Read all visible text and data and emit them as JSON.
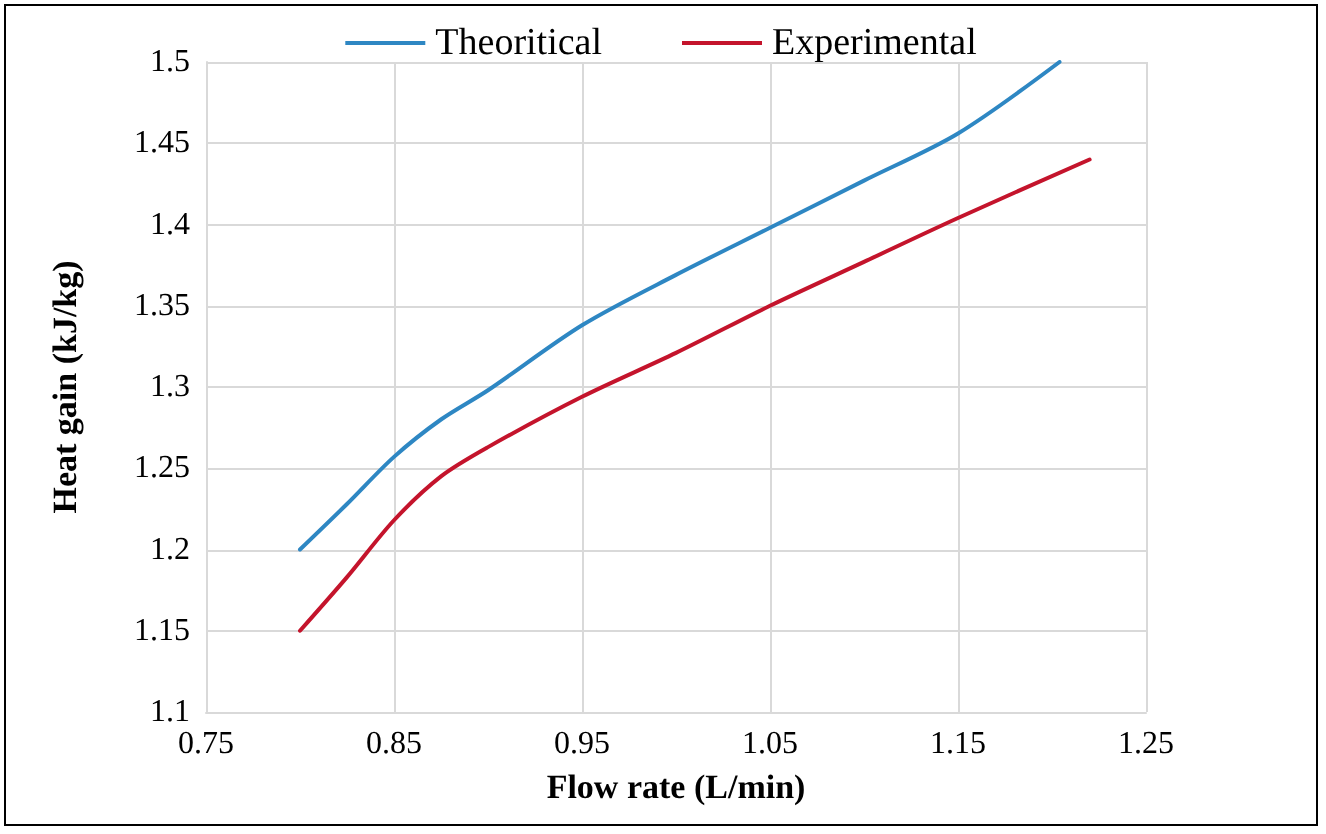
{
  "chart_data": {
    "type": "line",
    "xlabel": "Flow rate (L/min)",
    "ylabel": "Heat gain (kJ/kg)",
    "xlim": [
      0.75,
      1.25
    ],
    "xticks": [
      0.75,
      0.85,
      0.95,
      1.05,
      1.15,
      1.25
    ],
    "ylim": [
      1.1,
      1.5
    ],
    "yticks": [
      1.1,
      1.15,
      1.2,
      1.25,
      1.3,
      1.35,
      1.4,
      1.45,
      1.5
    ],
    "grid": true,
    "legend": "top",
    "marker": "none",
    "line_style": "solid",
    "series": [
      {
        "name": "Theoritical",
        "color": "#2e87c3",
        "x": [
          0.8,
          0.825,
          0.85,
          0.875,
          0.9,
          0.95,
          1.0,
          1.05,
          1.1,
          1.15,
          1.204
        ],
        "values": [
          1.2,
          1.228,
          1.257,
          1.28,
          1.298,
          1.338,
          1.369,
          1.398,
          1.427,
          1.456,
          1.5
        ]
      },
      {
        "name": "Experimental",
        "color": "#c4142c",
        "x": [
          0.8,
          0.825,
          0.85,
          0.875,
          0.9,
          0.95,
          1.0,
          1.05,
          1.1,
          1.15,
          1.22
        ],
        "values": [
          1.15,
          1.183,
          1.218,
          1.245,
          1.263,
          1.294,
          1.321,
          1.35,
          1.377,
          1.404,
          1.44
        ]
      }
    ]
  }
}
